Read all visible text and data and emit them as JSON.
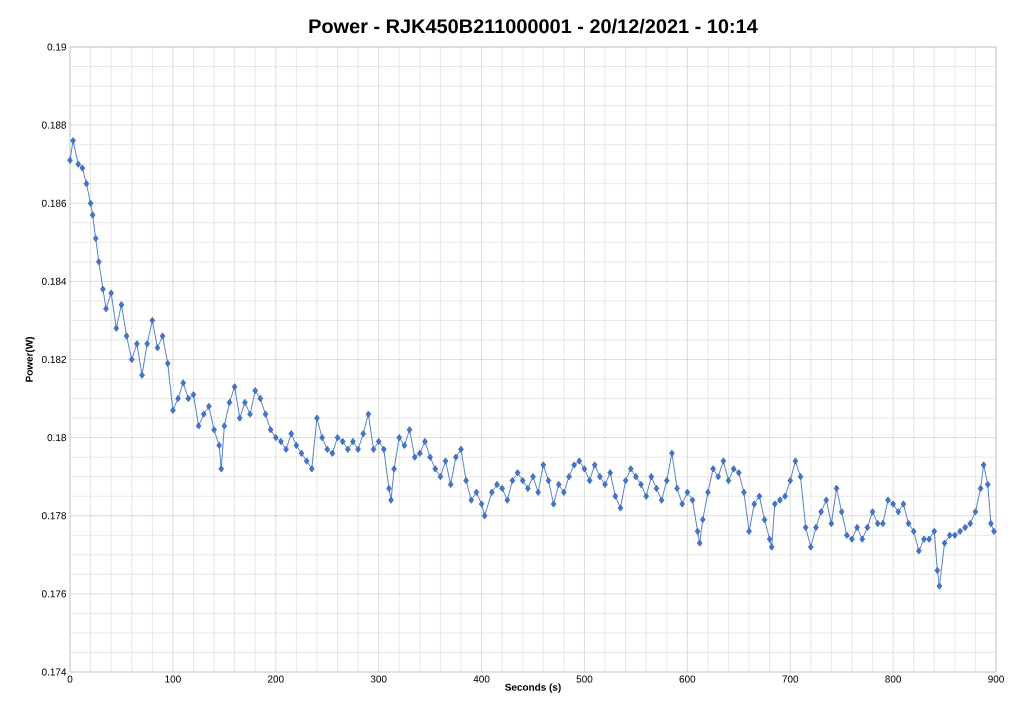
{
  "chart_data": {
    "type": "line",
    "title": "Power - RJK450B211000001 - 20/12/2021 - 10:14",
    "xlabel": "Seconds (s)",
    "ylabel": "Power(W)",
    "grid": true,
    "marker": "diamond",
    "line_style": "solid",
    "xlim": [
      0,
      900
    ],
    "ylim": [
      0.174,
      0.19
    ],
    "xticks": [
      0,
      100,
      200,
      300,
      400,
      500,
      600,
      700,
      800,
      900
    ],
    "yticks": [
      0.174,
      0.176,
      0.178,
      0.18,
      0.182,
      0.184,
      0.186,
      0.188,
      0.19
    ],
    "series": [
      {
        "color": "#4472c4",
        "x": [
          0,
          3,
          8,
          12,
          16,
          20,
          22,
          25,
          28,
          32,
          35,
          40,
          45,
          50,
          55,
          60,
          65,
          70,
          75,
          80,
          85,
          90,
          95,
          100,
          105,
          110,
          115,
          120,
          125,
          130,
          135,
          140,
          145,
          147,
          150,
          155,
          160,
          165,
          170,
          175,
          180,
          185,
          190,
          195,
          200,
          205,
          210,
          215,
          220,
          225,
          230,
          235,
          240,
          245,
          250,
          255,
          260,
          265,
          270,
          275,
          280,
          285,
          290,
          295,
          300,
          305,
          310,
          312,
          315,
          320,
          325,
          330,
          335,
          340,
          345,
          350,
          355,
          360,
          365,
          370,
          375,
          380,
          385,
          390,
          395,
          400,
          403,
          410,
          415,
          420,
          425,
          430,
          435,
          440,
          445,
          450,
          455,
          460,
          465,
          470,
          475,
          480,
          485,
          490,
          495,
          500,
          505,
          510,
          515,
          520,
          525,
          530,
          535,
          540,
          545,
          550,
          555,
          560,
          565,
          570,
          575,
          580,
          585,
          590,
          595,
          600,
          605,
          610,
          612,
          615,
          620,
          625,
          630,
          635,
          640,
          645,
          650,
          655,
          660,
          665,
          670,
          675,
          680,
          682,
          685,
          690,
          695,
          700,
          705,
          710,
          715,
          720,
          725,
          730,
          735,
          740,
          745,
          750,
          755,
          760,
          765,
          770,
          775,
          780,
          785,
          790,
          795,
          800,
          805,
          810,
          815,
          820,
          825,
          830,
          835,
          840,
          843,
          845,
          850,
          855,
          860,
          865,
          870,
          875,
          880,
          885,
          888,
          892,
          895,
          898
        ],
        "values": [
          0.1871,
          0.1876,
          0.187,
          0.1869,
          0.1865,
          0.186,
          0.1857,
          0.1851,
          0.1845,
          0.1838,
          0.1833,
          0.1837,
          0.1828,
          0.1834,
          0.1826,
          0.182,
          0.1824,
          0.1816,
          0.1824,
          0.183,
          0.1823,
          0.1826,
          0.1819,
          0.1807,
          0.181,
          0.1814,
          0.181,
          0.1811,
          0.1803,
          0.1806,
          0.1808,
          0.1802,
          0.1798,
          0.1792,
          0.1803,
          0.1809,
          0.1813,
          0.1805,
          0.1809,
          0.1806,
          0.1812,
          0.181,
          0.1806,
          0.1802,
          0.18,
          0.1799,
          0.1797,
          0.1801,
          0.1798,
          0.1796,
          0.1794,
          0.1792,
          0.1805,
          0.18,
          0.1797,
          0.1796,
          0.18,
          0.1799,
          0.1797,
          0.1799,
          0.1797,
          0.1801,
          0.1806,
          0.1797,
          0.1799,
          0.1797,
          0.1787,
          0.1784,
          0.1792,
          0.18,
          0.1798,
          0.1802,
          0.1795,
          0.1796,
          0.1799,
          0.1795,
          0.1792,
          0.179,
          0.1794,
          0.1788,
          0.1795,
          0.1797,
          0.1789,
          0.1784,
          0.1786,
          0.1783,
          0.178,
          0.1786,
          0.1788,
          0.1787,
          0.1784,
          0.1789,
          0.1791,
          0.1789,
          0.1787,
          0.179,
          0.1786,
          0.1793,
          0.1789,
          0.1783,
          0.1788,
          0.1786,
          0.179,
          0.1793,
          0.1794,
          0.1792,
          0.1789,
          0.1793,
          0.179,
          0.1788,
          0.1791,
          0.1785,
          0.1782,
          0.1789,
          0.1792,
          0.179,
          0.1788,
          0.1785,
          0.179,
          0.1787,
          0.1784,
          0.1789,
          0.1796,
          0.1787,
          0.1783,
          0.1786,
          0.1784,
          0.1776,
          0.1773,
          0.1779,
          0.1786,
          0.1792,
          0.179,
          0.1794,
          0.1789,
          0.1792,
          0.1791,
          0.1786,
          0.1776,
          0.1783,
          0.1785,
          0.1779,
          0.1774,
          0.1772,
          0.1783,
          0.1784,
          0.1785,
          0.1789,
          0.1794,
          0.179,
          0.1777,
          0.1772,
          0.1777,
          0.1781,
          0.1784,
          0.1778,
          0.1787,
          0.1781,
          0.1775,
          0.1774,
          0.1777,
          0.1774,
          0.1777,
          0.1781,
          0.1778,
          0.1778,
          0.1784,
          0.1783,
          0.1781,
          0.1783,
          0.1778,
          0.1776,
          0.1771,
          0.1774,
          0.1774,
          0.1776,
          0.1766,
          0.1762,
          0.1773,
          0.1775,
          0.1775,
          0.1776,
          0.1777,
          0.1778,
          0.1781,
          0.1787,
          0.1793,
          0.1788,
          0.1778,
          0.1776
        ]
      }
    ]
  }
}
